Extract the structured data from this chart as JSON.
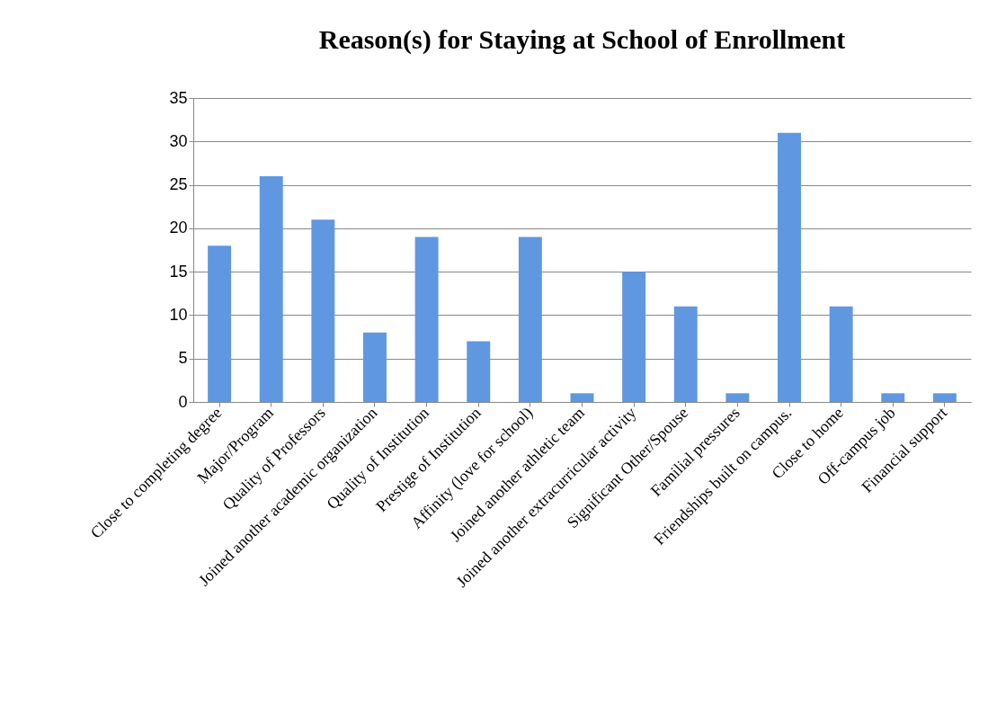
{
  "chart_data": {
    "type": "bar",
    "title": "Reason(s) for Staying at School of Enrollment",
    "categories": [
      "Close to completing degree",
      "Major/Program",
      "Quality of Professors",
      "Joined another academic organization",
      "Quality of Institution",
      "Prestige of Institution",
      "Affinity (love for school)",
      "Joined another athletic team",
      "Joined another extracurricular activity",
      "Significant Other/Spouse",
      "Familial pressures",
      "Friendships built on campus.",
      "Close to home",
      "Off-campus job",
      "Financial support"
    ],
    "values": [
      18,
      26,
      21,
      8,
      19,
      7,
      19,
      1,
      15,
      11,
      1,
      31,
      11,
      1,
      1
    ],
    "color": "#5f97e0",
    "ylim": [
      0,
      35
    ],
    "yticks": [
      0,
      5,
      10,
      15,
      20,
      25,
      30,
      35
    ],
    "grid": "y"
  }
}
